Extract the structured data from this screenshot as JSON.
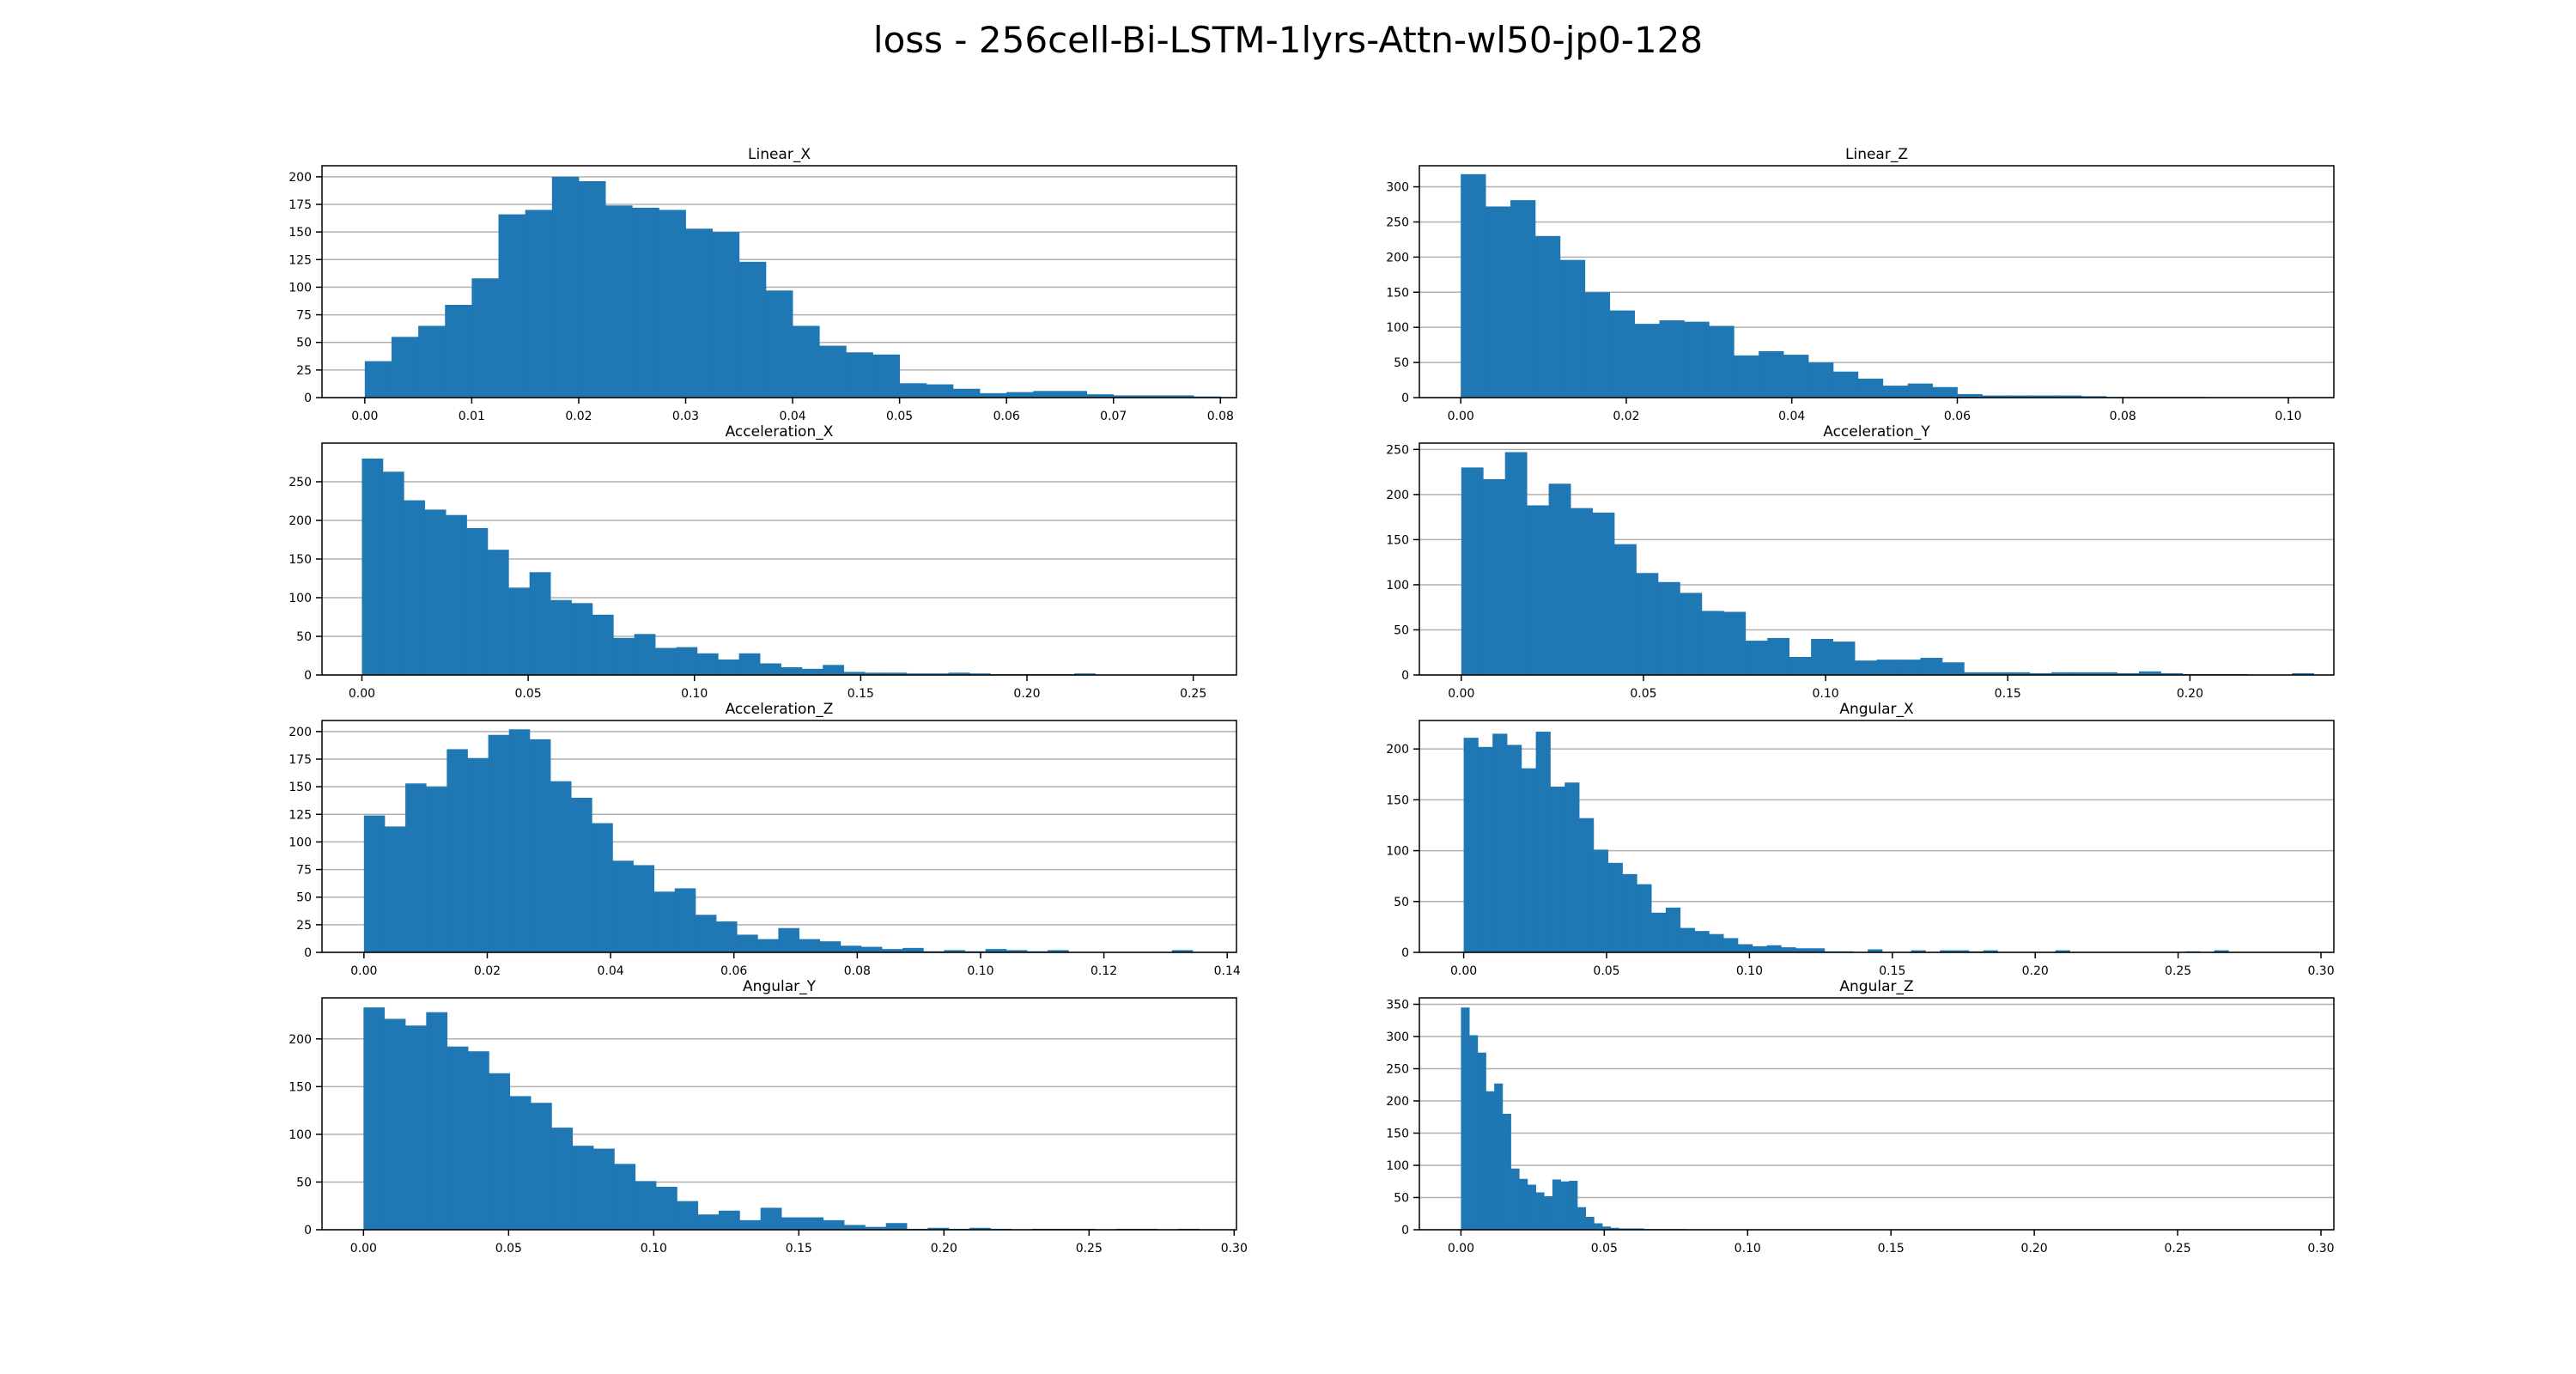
{
  "figure": {
    "suptitle": "loss - 256cell-Bi-LSTM-1lyrs-Attn-wl50-jp0-128",
    "bar_color": "#1f77b4",
    "grid_color": "#b0b0b0"
  },
  "chart_data": [
    {
      "type": "bar",
      "title": "Linear_X",
      "grid": "y",
      "xlim": [
        -0.004,
        0.0815
      ],
      "ylim": [
        0,
        210
      ],
      "xticks": [
        0.0,
        0.01,
        0.02,
        0.03,
        0.04,
        0.05,
        0.06,
        0.07,
        0.08
      ],
      "xtick_labels": [
        "0.00",
        "0.01",
        "0.02",
        "0.03",
        "0.04",
        "0.05",
        "0.06",
        "0.07",
        "0.08"
      ],
      "yticks": [
        0,
        25,
        50,
        75,
        100,
        125,
        150,
        175,
        200
      ],
      "bin_start": 0.0,
      "bin_width": 0.0025,
      "counts": [
        33,
        55,
        65,
        84,
        108,
        166,
        170,
        200,
        196,
        174,
        172,
        170,
        153,
        150,
        123,
        97,
        65,
        47,
        41,
        39,
        13,
        12,
        8,
        4,
        5,
        6,
        6,
        3,
        2,
        2,
        2,
        1
      ]
    },
    {
      "type": "bar",
      "title": "Linear_Z",
      "grid": "y",
      "xlim": [
        -0.005,
        0.1055
      ],
      "ylim": [
        0,
        330
      ],
      "xticks": [
        0.0,
        0.02,
        0.04,
        0.06,
        0.08,
        0.1
      ],
      "xtick_labels": [
        "0.00",
        "0.02",
        "0.04",
        "0.06",
        "0.08",
        "0.10"
      ],
      "yticks": [
        0,
        50,
        100,
        150,
        200,
        250,
        300
      ],
      "bin_start": 0.0,
      "bin_width": 0.003,
      "counts": [
        318,
        272,
        281,
        230,
        196,
        150,
        124,
        105,
        110,
        108,
        102,
        60,
        66,
        61,
        50,
        37,
        27,
        17,
        20,
        15,
        5,
        3,
        3,
        3,
        3,
        2,
        1,
        1,
        1,
        1,
        0,
        0,
        0,
        0
      ]
    },
    {
      "type": "bar",
      "title": "Acceleration_X",
      "grid": "y",
      "xlim": [
        -0.012,
        0.263
      ],
      "ylim": [
        0,
        300
      ],
      "xticks": [
        0.0,
        0.05,
        0.1,
        0.15,
        0.2,
        0.25
      ],
      "xtick_labels": [
        "0.00",
        "0.05",
        "0.10",
        "0.15",
        "0.20",
        "0.25"
      ],
      "yticks": [
        0,
        50,
        100,
        150,
        200,
        250
      ],
      "bin_start": 0.0,
      "bin_width": 0.0063,
      "counts": [
        280,
        263,
        226,
        214,
        207,
        190,
        162,
        113,
        133,
        97,
        93,
        78,
        48,
        53,
        35,
        36,
        28,
        20,
        28,
        15,
        10,
        8,
        13,
        4,
        3,
        3,
        2,
        2,
        3,
        2,
        1,
        1,
        1,
        1,
        2,
        0,
        0,
        0,
        0,
        0
      ]
    },
    {
      "type": "bar",
      "title": "Acceleration_Y",
      "grid": "y",
      "xlim": [
        -0.0115,
        0.2395
      ],
      "ylim": [
        0,
        257
      ],
      "xticks": [
        0.0,
        0.05,
        0.1,
        0.15,
        0.2
      ],
      "xtick_labels": [
        "0.00",
        "0.05",
        "0.10",
        "0.15",
        "0.20"
      ],
      "yticks": [
        0,
        50,
        100,
        150,
        200,
        250
      ],
      "bin_start": 0.0,
      "bin_width": 0.006,
      "counts": [
        230,
        217,
        247,
        188,
        212,
        185,
        180,
        145,
        113,
        103,
        91,
        71,
        70,
        38,
        41,
        20,
        40,
        37,
        16,
        17,
        17,
        19,
        14,
        3,
        3,
        3,
        2,
        3,
        3,
        3,
        2,
        4,
        2,
        1,
        1,
        1,
        0,
        0,
        2,
        0
      ]
    },
    {
      "type": "bar",
      "title": "Acceleration_Z",
      "grid": "y",
      "xlim": [
        -0.0068,
        0.1415
      ],
      "ylim": [
        0,
        210
      ],
      "xticks": [
        0.0,
        0.02,
        0.04,
        0.06,
        0.08,
        0.1,
        0.12,
        0.14
      ],
      "xtick_labels": [
        "0.00",
        "0.02",
        "0.04",
        "0.06",
        "0.08",
        "0.10",
        "0.12",
        "0.14"
      ],
      "yticks": [
        0,
        25,
        50,
        75,
        100,
        125,
        150,
        175,
        200
      ],
      "bin_start": 0.0,
      "bin_width": 0.00336,
      "counts": [
        124,
        114,
        153,
        150,
        184,
        176,
        197,
        202,
        193,
        155,
        140,
        117,
        83,
        79,
        55,
        58,
        34,
        28,
        16,
        12,
        22,
        12,
        10,
        6,
        5,
        3,
        4,
        1,
        2,
        1,
        3,
        2,
        1,
        2,
        0,
        0,
        0,
        0,
        0,
        2
      ]
    },
    {
      "type": "bar",
      "title": "Angular_X",
      "grid": "y",
      "xlim": [
        -0.0155,
        0.3045
      ],
      "ylim": [
        0,
        228
      ],
      "xticks": [
        0.0,
        0.05,
        0.1,
        0.15,
        0.2,
        0.25,
        0.3
      ],
      "xtick_labels": [
        "0.00",
        "0.05",
        "0.10",
        "0.15",
        "0.20",
        "0.25",
        "0.30"
      ],
      "yticks": [
        0,
        50,
        100,
        150,
        200
      ],
      "bin_start": 0.0,
      "bin_width": 0.00505,
      "counts": [
        211,
        202,
        215,
        204,
        181,
        217,
        163,
        167,
        132,
        101,
        88,
        77,
        67,
        39,
        44,
        24,
        21,
        18,
        14,
        8,
        6,
        7,
        5,
        4,
        4,
        1,
        1,
        0,
        3,
        0,
        0,
        2,
        0,
        2,
        2,
        1,
        2,
        0,
        0,
        0,
        0,
        2,
        0,
        0,
        0,
        0,
        0,
        0,
        0,
        0,
        1,
        0,
        2,
        0,
        0,
        0,
        0,
        0,
        0,
        0
      ]
    },
    {
      "type": "bar",
      "title": "Angular_Y",
      "grid": "y",
      "xlim": [
        -0.0143,
        0.3008
      ],
      "ylim": [
        0,
        243
      ],
      "xticks": [
        0.0,
        0.05,
        0.1,
        0.15,
        0.2,
        0.25,
        0.3
      ],
      "xtick_labels": [
        "0.00",
        "0.05",
        "0.10",
        "0.15",
        "0.20",
        "0.25",
        "0.30"
      ],
      "yticks": [
        0,
        50,
        100,
        150,
        200
      ],
      "bin_start": 0.0,
      "bin_width": 0.0072,
      "counts": [
        233,
        221,
        214,
        228,
        192,
        187,
        164,
        140,
        133,
        107,
        88,
        85,
        69,
        51,
        45,
        30,
        16,
        20,
        10,
        23,
        13,
        13,
        10,
        5,
        3,
        7,
        1,
        2,
        1,
        2,
        1,
        0,
        1,
        1,
        1,
        0,
        1,
        1,
        0,
        1
      ]
    },
    {
      "type": "bar",
      "title": "Angular_Z",
      "grid": "y",
      "xlim": [
        -0.0145,
        0.3045
      ],
      "ylim": [
        0,
        360
      ],
      "xticks": [
        0.0,
        0.05,
        0.1,
        0.15,
        0.2,
        0.25,
        0.3
      ],
      "xtick_labels": [
        "0.00",
        "0.05",
        "0.10",
        "0.15",
        "0.20",
        "0.25",
        "0.30"
      ],
      "yticks": [
        0,
        50,
        100,
        150,
        200,
        250,
        300,
        350
      ],
      "bin_start": 0.0,
      "bin_width": 0.0029,
      "counts": [
        345,
        302,
        275,
        215,
        227,
        180,
        95,
        79,
        70,
        58,
        52,
        78,
        75,
        76,
        35,
        20,
        10,
        5,
        3,
        2,
        2,
        2,
        1,
        1,
        1,
        1,
        1
      ]
    }
  ]
}
